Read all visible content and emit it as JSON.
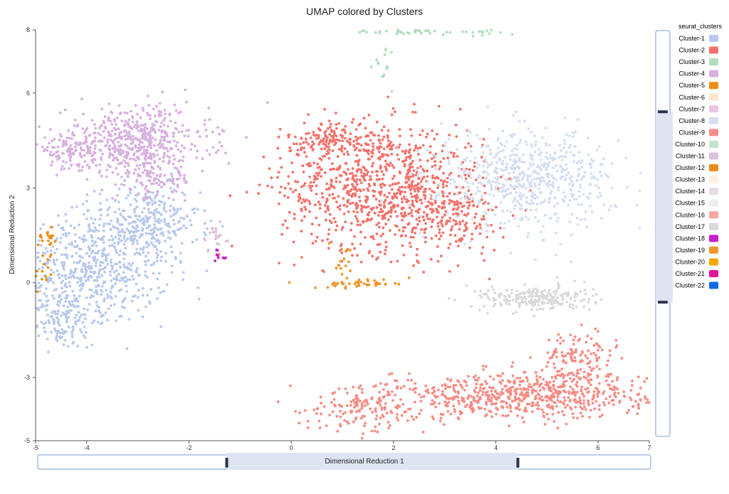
{
  "chart_data": {
    "type": "scatter",
    "title": "UMAP colored by Clusters",
    "xlabel": "Dimensional Reduction 1",
    "ylabel": "Dimensional Reduction 2",
    "xlim": [
      -5,
      7
    ],
    "ylim": [
      -5,
      8
    ],
    "x_ticks": [
      -5,
      -4,
      -2,
      0,
      2,
      4,
      6,
      7
    ],
    "y_ticks": [
      -5,
      -3,
      0,
      3,
      6,
      8
    ],
    "legend_title": "seurat_clusters",
    "legend_position": "right",
    "grid": false,
    "x_range_slider": [
      -1.3,
      4.4
    ],
    "y_range_slider": [
      -0.7,
      5.4
    ],
    "series": [
      {
        "name": "Cluster-1",
        "color": "#b8c9ec",
        "clusters": [
          {
            "cx": -3.9,
            "cy": 0.5,
            "sx": 0.75,
            "sy": 0.9,
            "n": 620
          },
          {
            "cx": -2.8,
            "cy": 1.9,
            "sx": 0.5,
            "sy": 0.6,
            "n": 260
          },
          {
            "cx": -4.5,
            "cy": -1.2,
            "sx": 0.35,
            "sy": 0.45,
            "n": 140
          }
        ]
      },
      {
        "name": "Cluster-2",
        "color": "#f4726b",
        "clusters": [
          {
            "cx": 1.8,
            "cy": 3.0,
            "sx": 1.0,
            "sy": 1.0,
            "n": 900
          },
          {
            "cx": 0.9,
            "cy": 4.5,
            "sx": 0.5,
            "sy": 0.3,
            "n": 150
          },
          {
            "cx": 3.2,
            "cy": 2.0,
            "sx": 0.5,
            "sy": 0.5,
            "n": 120
          }
        ]
      },
      {
        "name": "Cluster-3",
        "color": "#b3dcbf",
        "clusters": [
          {
            "cx": 2.4,
            "cy": 7.95,
            "sx": 0.6,
            "sy": 0.05,
            "n": 40
          },
          {
            "cx": 3.8,
            "cy": 7.9,
            "sx": 0.2,
            "sy": 0.05,
            "n": 10
          },
          {
            "cx": 1.8,
            "cy": 6.8,
            "sx": 0.15,
            "sy": 0.4,
            "n": 15
          }
        ]
      },
      {
        "name": "Cluster-4",
        "color": "#d7b1df",
        "clusters": [
          {
            "cx": -3.0,
            "cy": 4.5,
            "sx": 0.7,
            "sy": 0.55,
            "n": 480
          },
          {
            "cx": -4.3,
            "cy": 4.2,
            "sx": 0.35,
            "sy": 0.3,
            "n": 120
          },
          {
            "cx": -2.7,
            "cy": 3.3,
            "sx": 0.4,
            "sy": 0.35,
            "n": 120
          }
        ]
      },
      {
        "name": "Cluster-5",
        "color": "#ec8e12",
        "clusters": [
          {
            "cx": -4.75,
            "cy": 1.4,
            "sx": 0.15,
            "sy": 0.12,
            "n": 18
          },
          {
            "cx": -4.85,
            "cy": 0.4,
            "sx": 0.1,
            "sy": 0.3,
            "n": 16
          }
        ]
      },
      {
        "name": "Cluster-6",
        "color": "#fde6c9",
        "clusters": []
      },
      {
        "name": "Cluster-7",
        "color": "#ebc6df",
        "clusters": []
      },
      {
        "name": "Cluster-8",
        "color": "#d4def0",
        "clusters": [
          {
            "cx": 4.6,
            "cy": 3.3,
            "sx": 0.85,
            "sy": 0.75,
            "n": 620
          }
        ]
      },
      {
        "name": "Cluster-9",
        "color": "#f78c85",
        "clusters": [
          {
            "cx": 4.5,
            "cy": -3.6,
            "sx": 1.2,
            "sy": 0.35,
            "n": 620
          },
          {
            "cx": 1.5,
            "cy": -3.9,
            "sx": 0.6,
            "sy": 0.4,
            "n": 160
          },
          {
            "cx": 5.6,
            "cy": -2.5,
            "sx": 0.35,
            "sy": 0.45,
            "n": 150
          }
        ]
      },
      {
        "name": "Cluster-10",
        "color": "#c4e2cd",
        "clusters": []
      },
      {
        "name": "Cluster-11",
        "color": "#dcc2dc",
        "clusters": [
          {
            "cx": -1.5,
            "cy": 1.5,
            "sx": 0.12,
            "sy": 0.25,
            "n": 25
          }
        ]
      },
      {
        "name": "Cluster-12",
        "color": "#ea8c1b",
        "clusters": []
      },
      {
        "name": "Cluster-13",
        "color": "#fcf0e0",
        "clusters": []
      },
      {
        "name": "Cluster-14",
        "color": "#e6dce6",
        "clusters": []
      },
      {
        "name": "Cluster-15",
        "color": "#eeeeee",
        "clusters": []
      },
      {
        "name": "Cluster-16",
        "color": "#f8a6a0",
        "clusters": []
      },
      {
        "name": "Cluster-17",
        "color": "#d9d9d9",
        "clusters": [
          {
            "cx": 4.8,
            "cy": -0.5,
            "sx": 0.55,
            "sy": 0.2,
            "n": 230
          }
        ]
      },
      {
        "name": "Cluster-18",
        "color": "#c81fcc",
        "clusters": [
          {
            "cx": -1.37,
            "cy": 0.85,
            "sx": 0.05,
            "sy": 0.08,
            "n": 9
          }
        ]
      },
      {
        "name": "Cluster-19",
        "color": "#f0952f",
        "clusters": [
          {
            "cx": 1.4,
            "cy": -0.02,
            "sx": 0.45,
            "sy": 0.08,
            "n": 45
          },
          {
            "cx": 1.0,
            "cy": 0.6,
            "sx": 0.08,
            "sy": 0.3,
            "n": 18
          }
        ]
      },
      {
        "name": "Cluster-20",
        "color": "#f6a800",
        "clusters": []
      },
      {
        "name": "Cluster-21",
        "color": "#e4129a",
        "clusters": []
      },
      {
        "name": "Cluster-22",
        "color": "#1368ea",
        "clusters": []
      }
    ]
  }
}
